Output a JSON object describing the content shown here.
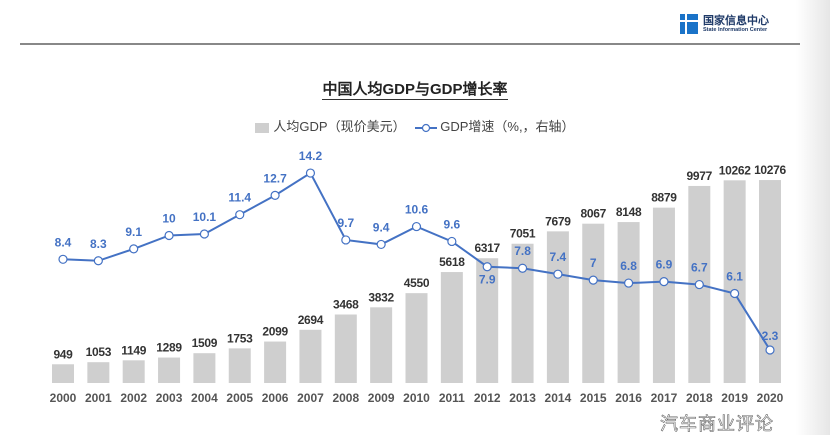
{
  "header": {
    "logo_cn": "国家信息中心",
    "logo_en": "State Information Center"
  },
  "watermark": "汽车商业评论",
  "chart_data": {
    "type": "bar+line",
    "title": "中国人均GDP与GDP增长率",
    "categories": [
      "2000",
      "2001",
      "2002",
      "2003",
      "2004",
      "2005",
      "2006",
      "2007",
      "2008",
      "2009",
      "2010",
      "2011",
      "2012",
      "2013",
      "2014",
      "2015",
      "2016",
      "2017",
      "2018",
      "2019",
      "2020"
    ],
    "series": [
      {
        "name": "人均GDP（现价美元）",
        "type": "bar",
        "axis": "left",
        "color": "#cfcfcf",
        "values": [
          949,
          1053,
          1149,
          1289,
          1509,
          1753,
          2099,
          2694,
          3468,
          3832,
          4550,
          5618,
          6317,
          7051,
          7679,
          8067,
          8148,
          8879,
          9977,
          10262,
          10276
        ]
      },
      {
        "name": "GDP增速（%,，右轴）",
        "type": "line",
        "axis": "right",
        "color": "#4472c4",
        "values": [
          8.4,
          8.3,
          9.1,
          10,
          10.1,
          11.4,
          12.7,
          14.2,
          9.7,
          9.4,
          10.6,
          9.6,
          7.9,
          7.8,
          7.4,
          7,
          6.8,
          6.9,
          6.7,
          6.1,
          2.3
        ]
      }
    ],
    "legend": "top-center",
    "grid": false
  }
}
